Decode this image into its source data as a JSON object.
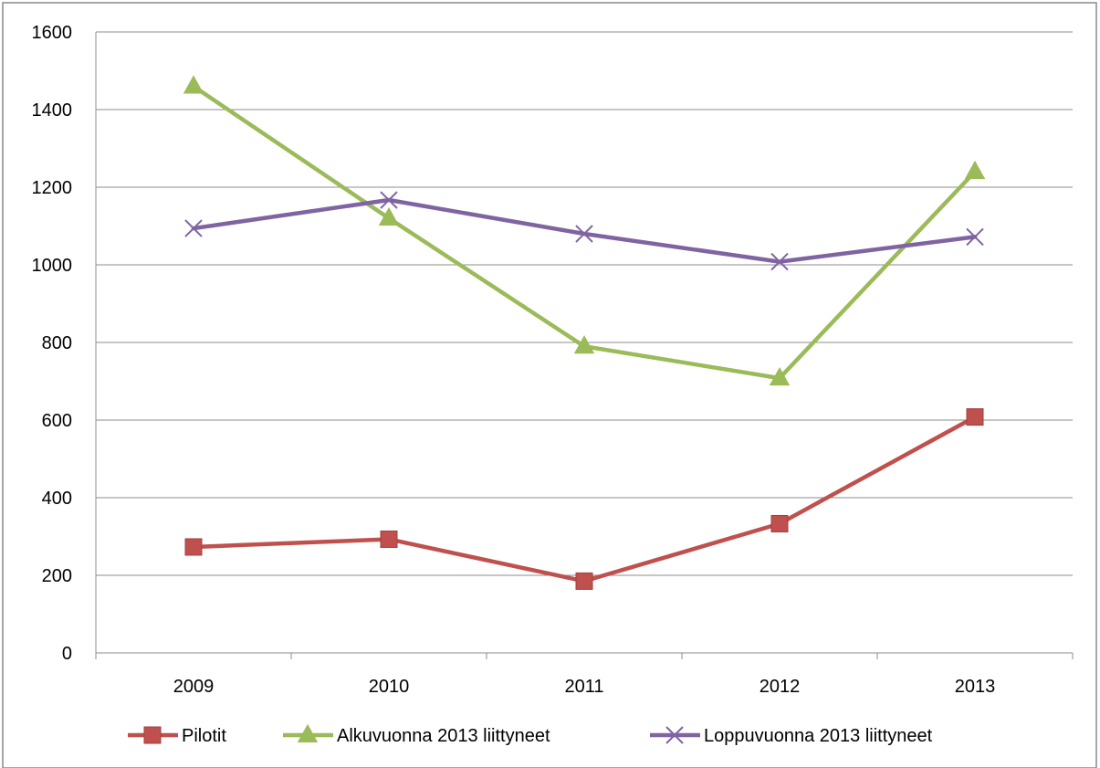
{
  "chart_data": {
    "type": "line",
    "title": "",
    "xlabel": "",
    "ylabel": "",
    "categories": [
      "2009",
      "2010",
      "2011",
      "2012",
      "2013"
    ],
    "ylim": [
      0,
      1600
    ],
    "yticks": [
      0,
      200,
      400,
      600,
      800,
      1000,
      1200,
      1400,
      1600
    ],
    "grid": true,
    "legend_position": "bottom",
    "series": [
      {
        "name": "Pilotit",
        "values": [
          273,
          293,
          185,
          333,
          608
        ],
        "color": "#C0504D",
        "marker": "square"
      },
      {
        "name": "Alkuvuonna 2013 liittyneet",
        "values": [
          1460,
          1120,
          790,
          708,
          1240
        ],
        "color": "#9BBB59",
        "marker": "triangle"
      },
      {
        "name": "Loppuvuonna 2013 liittyneet",
        "values": [
          1094,
          1167,
          1080,
          1008,
          1072
        ],
        "color": "#8064A2",
        "marker": "x"
      }
    ]
  }
}
